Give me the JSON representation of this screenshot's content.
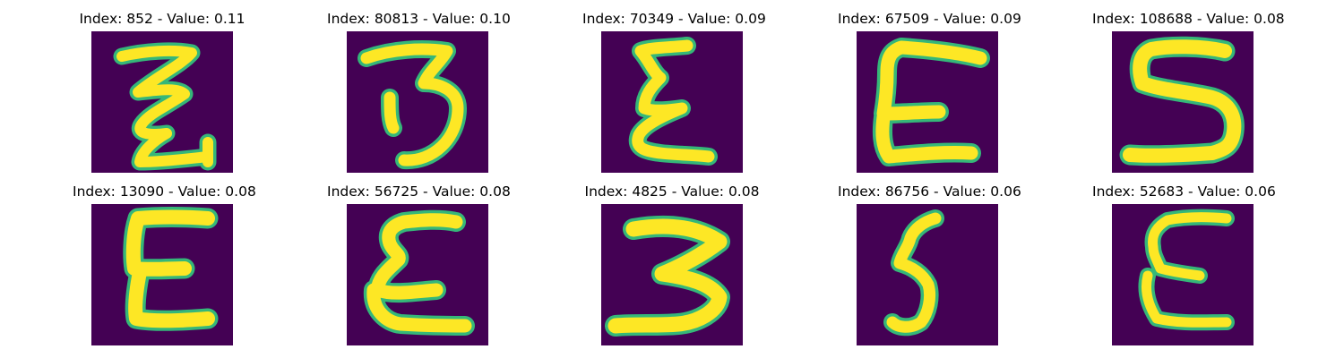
{
  "figure": {
    "background_color": "#440154",
    "stroke_color": "#fde725",
    "edge_color": "#35b779",
    "panels": [
      {
        "title": "Index: 852 - Value: 0.11",
        "glyph": "zigzag-z"
      },
      {
        "title": "Index: 80813 - Value: 0.10",
        "glyph": "three"
      },
      {
        "title": "Index: 70349 - Value: 0.09",
        "glyph": "narrow-e"
      },
      {
        "title": "Index: 67509 - Value: 0.09",
        "glyph": "wide-e"
      },
      {
        "title": "Index: 108688 - Value: 0.08",
        "glyph": "s"
      },
      {
        "title": "Index: 13090 - Value: 0.08",
        "glyph": "block-e"
      },
      {
        "title": "Index: 56725 - Value: 0.08",
        "glyph": "curly-e"
      },
      {
        "title": "Index: 4825 - Value: 0.08",
        "glyph": "bold-three"
      },
      {
        "title": "Index: 86756 - Value: 0.06",
        "glyph": "five"
      },
      {
        "title": "Index: 52683 - Value: 0.06",
        "glyph": "thin-e"
      }
    ]
  }
}
